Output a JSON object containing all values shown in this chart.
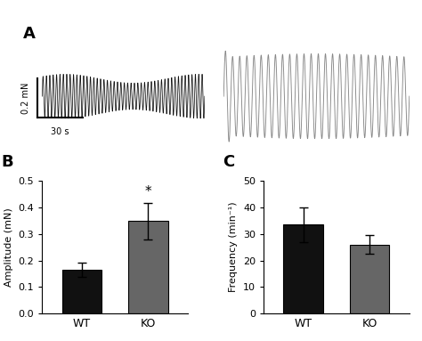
{
  "panel_A_label": "A",
  "panel_B_label": "B",
  "panel_C_label": "C",
  "wt_label": "WT",
  "ko_label": "KO",
  "scale_bar_y": "0.2 mN",
  "scale_bar_x": "30 s",
  "bar_B_values": [
    0.165,
    0.348
  ],
  "bar_B_errors": [
    0.028,
    0.068
  ],
  "bar_B_colors": [
    "#111111",
    "#666666"
  ],
  "bar_B_categories": [
    "WT",
    "KO"
  ],
  "bar_B_ylabel": "Amplitude (mN)",
  "bar_B_ylim": [
    0,
    0.5
  ],
  "bar_B_yticks": [
    0.0,
    0.1,
    0.2,
    0.3,
    0.4,
    0.5
  ],
  "bar_B_significance": "*",
  "bar_C_values": [
    33.5,
    26.0
  ],
  "bar_C_errors": [
    6.5,
    3.5
  ],
  "bar_C_colors": [
    "#111111",
    "#666666"
  ],
  "bar_C_categories": [
    "WT",
    "KO"
  ],
  "bar_C_ylabel": "Frequency (min⁻¹)",
  "bar_C_ylim": [
    0,
    50
  ],
  "bar_C_yticks": [
    0,
    10,
    20,
    30,
    40,
    50
  ],
  "wt_trace_color": "#111111",
  "ko_trace_color": "#888888",
  "background_color": "#ffffff",
  "wt_n_cycles": 48,
  "wt_amplitude": 0.45,
  "ko_n_cycles": 26,
  "ko_amplitude": 1.0
}
